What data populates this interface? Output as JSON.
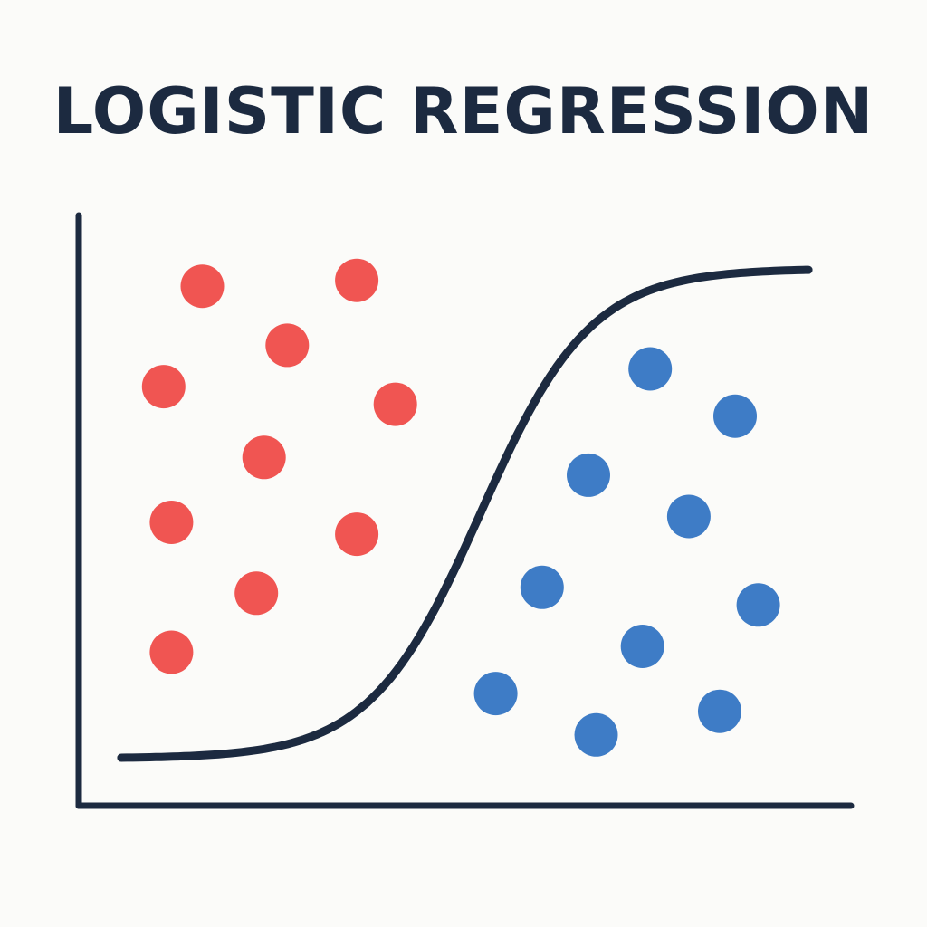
{
  "title": "LOGISTIC REGRESSION",
  "colors": {
    "background": "#fbfbf9",
    "axis": "#1c2a40",
    "curve": "#1c2a40",
    "class_a": "#f05552",
    "class_b": "#3e7cc6"
  },
  "chart_data": {
    "type": "scatter",
    "title": "LOGISTIC REGRESSION",
    "xlabel": "",
    "ylabel": "",
    "tick_labels": "none",
    "grid": false,
    "xlim": [
      0,
      100
    ],
    "ylim": [
      0,
      100
    ],
    "series": [
      {
        "class": "red",
        "points": [
          [
            16,
            88
          ],
          [
            36,
            89
          ],
          [
            27,
            78
          ],
          [
            11,
            71
          ],
          [
            41,
            68
          ],
          [
            24,
            59
          ],
          [
            12,
            48
          ],
          [
            36,
            46
          ],
          [
            23,
            36
          ],
          [
            12,
            26
          ]
        ]
      },
      {
        "class": "blue",
        "points": [
          [
            74,
            74
          ],
          [
            85,
            66
          ],
          [
            66,
            56
          ],
          [
            79,
            49
          ],
          [
            60,
            37
          ],
          [
            88,
            34
          ],
          [
            73,
            27
          ],
          [
            54,
            19
          ],
          [
            67,
            12
          ],
          [
            83,
            16
          ]
        ]
      }
    ],
    "curve": {
      "type": "sigmoid",
      "x_range": [
        5.5,
        94.5
      ],
      "y_min": 8,
      "y_max": 91,
      "midpoint_x": 52,
      "steepness": 0.14
    }
  }
}
